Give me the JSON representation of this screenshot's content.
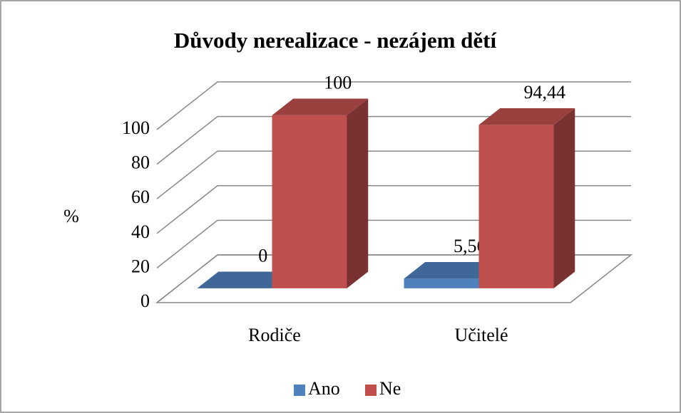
{
  "chart_data": {
    "type": "bar3d",
    "title": "Důvody nerealizace - nezájem dětí",
    "ylabel": "%",
    "categories": [
      "Rodiče",
      "Učitelé"
    ],
    "series": [
      {
        "name": "Ano",
        "color": "#4f81bd",
        "values": [
          0,
          5.56
        ],
        "value_labels": [
          "0",
          "5,56"
        ]
      },
      {
        "name": "Ne",
        "color": "#c0504d",
        "values": [
          100,
          94.44
        ],
        "value_labels": [
          "100",
          "94,44"
        ]
      }
    ],
    "ylim": [
      0,
      100
    ],
    "yticks": [
      0,
      20,
      40,
      60,
      80,
      100
    ],
    "grid": true,
    "legend": "bottom"
  }
}
